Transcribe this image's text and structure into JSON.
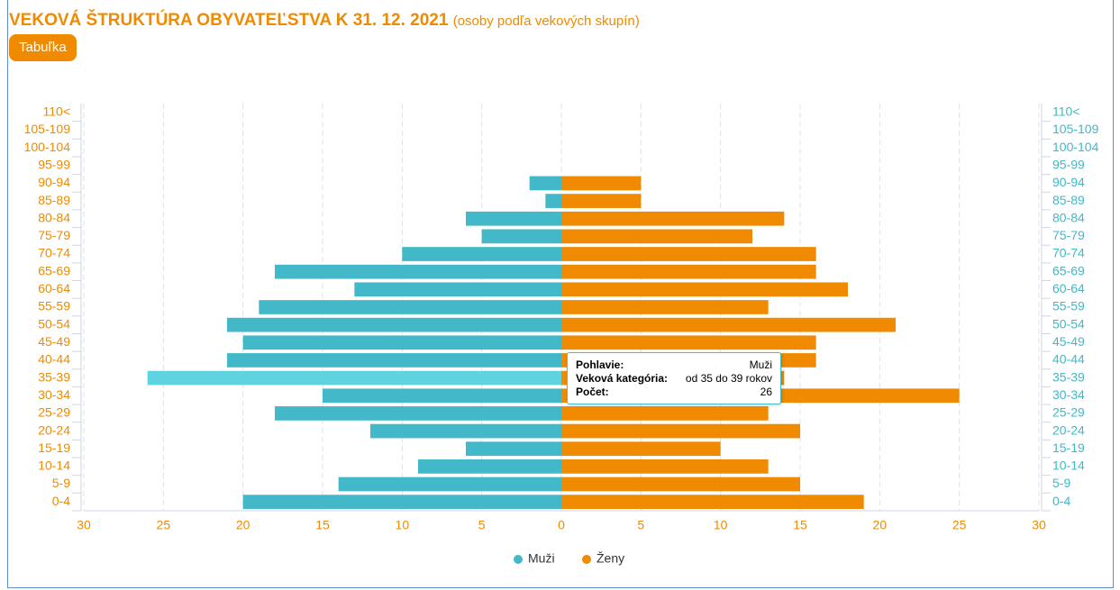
{
  "chart_data": {
    "type": "pyramid",
    "title": "VEKOVÁ ŠTRUKTÚRA OBYVATEĽSTVA K 31. 12. 2021",
    "subtitle": "(osoby podľa vekových skupín)",
    "button": "Tabuľka",
    "categories": [
      "0-4",
      "5-9",
      "10-14",
      "15-19",
      "20-24",
      "25-29",
      "30-34",
      "35-39",
      "40-44",
      "45-49",
      "50-54",
      "55-59",
      "60-64",
      "65-69",
      "70-74",
      "75-79",
      "80-84",
      "85-89",
      "90-94",
      "95-99",
      "100-104",
      "105-109",
      "110<"
    ],
    "series": [
      {
        "name": "Muži",
        "color": "#42b8c8",
        "side": "left",
        "values": [
          20,
          14,
          9,
          6,
          12,
          18,
          15,
          26,
          21,
          20,
          21,
          19,
          13,
          18,
          10,
          5,
          6,
          1,
          2,
          0,
          0,
          0,
          0
        ]
      },
      {
        "name": "Ženy",
        "color": "#f08a00",
        "side": "right",
        "values": [
          19,
          15,
          13,
          10,
          15,
          13,
          25,
          14,
          16,
          16,
          21,
          13,
          18,
          16,
          16,
          12,
          14,
          5,
          5,
          0,
          0,
          0,
          0
        ]
      }
    ],
    "xlim": [
      -30,
      30
    ],
    "xticks": [
      {
        "value": -30,
        "label": "30"
      },
      {
        "value": -25,
        "label": "25"
      },
      {
        "value": -20,
        "label": "20"
      },
      {
        "value": -15,
        "label": "15"
      },
      {
        "value": -10,
        "label": "10"
      },
      {
        "value": -5,
        "label": "5"
      },
      0,
      5,
      10,
      15,
      20,
      25,
      30
    ],
    "grid": true,
    "tooltip": {
      "rows": [
        [
          "Pohlavie:",
          "Muži"
        ],
        [
          "Veková kategória:",
          "od 35 do 39 rokov"
        ],
        [
          "Počet:",
          "26"
        ]
      ]
    }
  }
}
